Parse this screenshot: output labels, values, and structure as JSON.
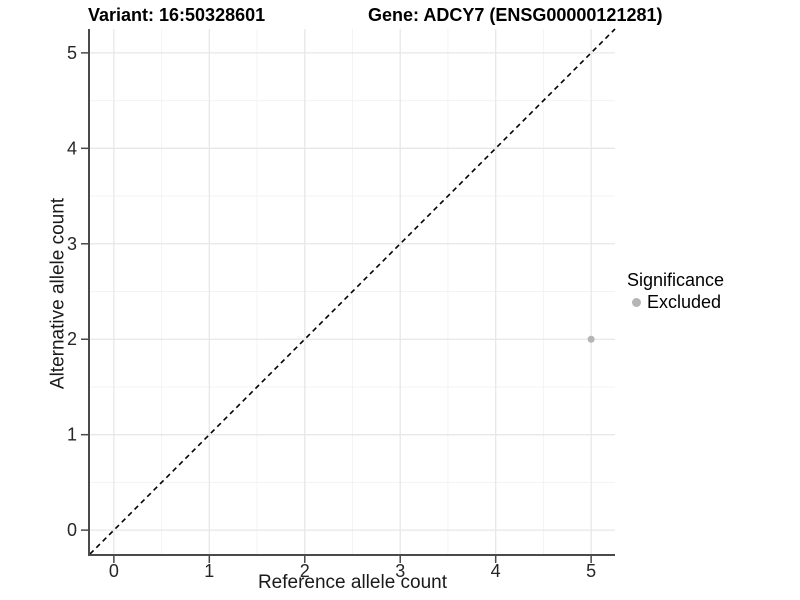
{
  "chart_data": {
    "type": "scatter",
    "title_left": "Variant: 16:50328601",
    "title_right": "Gene: ADCY7 (ENSG00000121281)",
    "xlabel": "Reference allele count",
    "ylabel": "Alternative allele count",
    "xlim": [
      -0.25,
      5.25
    ],
    "ylim": [
      -0.25,
      5.25
    ],
    "x_ticks": [
      0,
      1,
      2,
      3,
      4,
      5
    ],
    "y_ticks": [
      0,
      1,
      2,
      3,
      4,
      5
    ],
    "x_minor_ticks": [
      0.5,
      1.5,
      2.5,
      3.5,
      4.5
    ],
    "y_minor_ticks": [
      0.5,
      1.5,
      2.5,
      3.5,
      4.5
    ],
    "grid": true,
    "reference_line": {
      "kind": "identity",
      "style": "dashed",
      "color": "#000000"
    },
    "series": [
      {
        "name": "Excluded",
        "color": "#b5b5b5",
        "points": [
          {
            "x": 5,
            "y": 2
          }
        ]
      }
    ],
    "legend": {
      "title": "Significance",
      "entries": [
        "Excluded"
      ],
      "position": "right"
    }
  },
  "colors": {
    "background": "#ffffff",
    "grid_major": "#e7e7e7",
    "grid_minor": "#f3f3f3",
    "axis_line": "#4a4a4a",
    "tick_text": "#262626",
    "point": "#b5b5b5",
    "dashed_line": "#000000"
  }
}
